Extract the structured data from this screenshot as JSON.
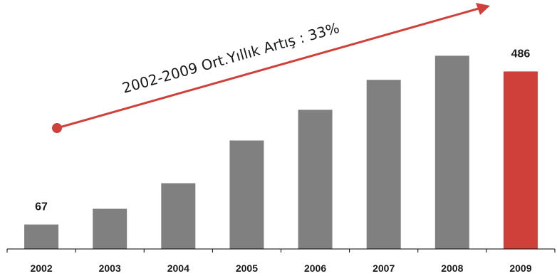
{
  "chart_data": {
    "type": "bar",
    "categories": [
      "2002",
      "2003",
      "2004",
      "2005",
      "2006",
      "2007",
      "2008",
      "2009"
    ],
    "values": [
      67,
      110,
      180,
      297,
      381,
      463,
      529,
      486
    ],
    "data_labels": {
      "2002": "67",
      "2009": "486"
    },
    "annotation": "2002-2009 Ort.Yıllık Artış : 33%",
    "ylim": [
      0,
      555
    ],
    "grid": false,
    "legend": "none",
    "colors": {
      "bar": "#808080",
      "highlight": "#d0403a",
      "arrow": "#d0403a",
      "axis": "#000000"
    },
    "highlight_category": "2009"
  }
}
